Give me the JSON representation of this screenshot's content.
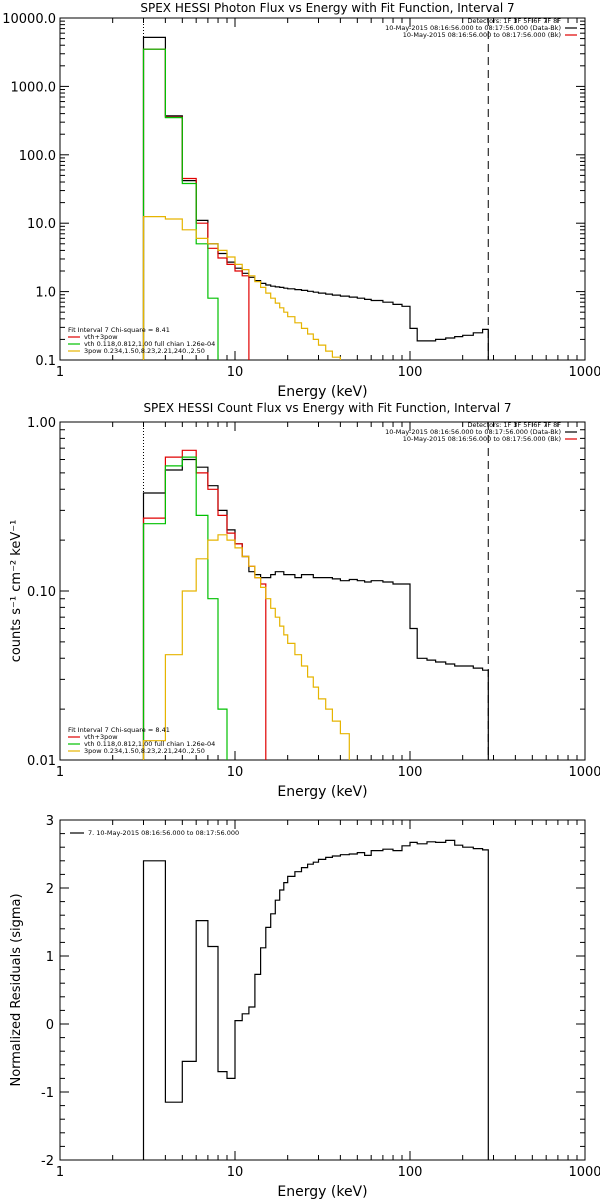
{
  "chart_data": [
    {
      "type": "line",
      "title": "SPEX HESSI Photon Flux vs Energy with Fit Function, Interval 7",
      "xlabel": "Energy (keV)",
      "ylabel": "",
      "xscale": "log",
      "yscale": "log",
      "xlim": [
        1,
        1000
      ],
      "ylim": [
        0.1,
        10000
      ],
      "xticks": [
        "1",
        "10",
        "100",
        "1000"
      ],
      "yticks": [
        "10000.0",
        "1000.0",
        "100.0",
        "10.0",
        "1.0",
        "0.1"
      ],
      "info": [
        "Detectors: 1F 3F 5F 6F 7F 8F",
        "10-May-2015 08:16:56.000 to 08:17:56.000 (Data-Bk)",
        "10-May-2015 08:16:56.000 to 08:17:56.000 (Bk)"
      ],
      "legend": {
        "header": "Fit Interval 7   Chi-square = 8.41",
        "entries": [
          "vth+3pow",
          "vth 0.118,0.812,1.00  full chian 1.26e-04",
          "3pow 0.234,1.50,8.23,2.21,240.,2.50"
        ]
      },
      "vlines": [
        {
          "x": 3,
          "style": "dotted"
        },
        {
          "x": 280,
          "style": "dashed"
        }
      ],
      "series": [
        {
          "name": "",
          "color": "#000000",
          "edges": [
            3,
            4,
            5,
            6,
            7,
            8,
            9,
            10,
            11,
            12,
            13,
            14,
            15,
            16,
            17,
            18,
            19,
            20,
            22,
            24,
            26,
            28,
            30,
            33,
            36,
            40,
            45,
            50,
            55,
            60,
            70,
            80,
            90,
            100,
            110,
            125,
            140,
            160,
            180,
            200,
            230,
            260,
            280
          ],
          "values": [
            5200,
            370,
            42,
            11,
            5,
            3.6,
            2.7,
            2.2,
            1.85,
            1.62,
            1.45,
            1.32,
            1.25,
            1.2,
            1.17,
            1.15,
            1.12,
            1.1,
            1.07,
            1.04,
            1.01,
            0.98,
            0.95,
            0.92,
            0.89,
            0.86,
            0.83,
            0.8,
            0.77,
            0.74,
            0.7,
            0.65,
            0.61,
            0.29,
            0.19,
            0.19,
            0.2,
            0.21,
            0.22,
            0.23,
            0.25,
            0.28
          ]
        },
        {
          "name": "",
          "color": "#e00000",
          "edges": [
            3,
            4,
            5,
            6,
            7,
            8,
            9,
            10,
            11,
            12
          ],
          "values": [
            3500,
            355,
            45,
            10,
            4.3,
            3.1,
            2.5,
            2.0,
            1.7
          ]
        },
        {
          "name": "",
          "color": "#00c000",
          "edges": [
            3,
            4,
            5,
            6,
            7,
            8
          ],
          "values": [
            3500,
            350,
            38,
            5,
            0.8
          ]
        },
        {
          "name": "",
          "color": "#e6b400",
          "edges": [
            3,
            4,
            5,
            6,
            7,
            8,
            9,
            10,
            11,
            12,
            13,
            14,
            15,
            16,
            17,
            18,
            19,
            20,
            22,
            24,
            26,
            28,
            30,
            33,
            36,
            40
          ],
          "values": [
            12.5,
            11.5,
            8,
            6,
            5,
            4,
            3.2,
            2.5,
            2.1,
            1.7,
            1.4,
            1.15,
            0.95,
            0.8,
            0.68,
            0.58,
            0.5,
            0.43,
            0.35,
            0.29,
            0.24,
            0.2,
            0.165,
            0.135,
            0.11
          ]
        }
      ]
    },
    {
      "type": "line",
      "title": "SPEX HESSI Count Flux vs Energy with Fit Function, Interval 7",
      "xlabel": "Energy (keV)",
      "ylabel": "counts s⁻¹ cm⁻² keV⁻¹",
      "xscale": "log",
      "yscale": "log",
      "xlim": [
        1,
        1000
      ],
      "ylim": [
        0.01,
        1
      ],
      "xticks": [
        "1",
        "10",
        "100",
        "1000"
      ],
      "yticks": [
        "1.00",
        "0.10",
        "0.01"
      ],
      "info": [
        "Detectors: 1F 3F 5F 6F 7F 8F",
        "10-May-2015 08:16:56.000 to 08:17:56.000 (Data-Bk)",
        "10-May-2015 08:16:56.000 to 08:17:56.000 (Bk)"
      ],
      "legend": {
        "header": "Fit Interval 7   Chi-square = 8.41",
        "entries": [
          "vth+3pow",
          "vth 0.118,0.812,1.00  full chian 1.26e-04",
          "3pow 0.234,1.50,8.23,2.21,240.,2.50"
        ]
      },
      "vlines": [
        {
          "x": 3,
          "style": "dotted"
        },
        {
          "x": 280,
          "style": "dashed"
        }
      ],
      "series": [
        {
          "name": "",
          "color": "#000000",
          "edges": [
            3,
            4,
            5,
            6,
            7,
            8,
            9,
            10,
            11,
            12,
            13,
            14,
            15,
            16,
            17,
            18,
            19,
            20,
            22,
            24,
            26,
            28,
            30,
            33,
            36,
            40,
            45,
            50,
            55,
            60,
            70,
            80,
            90,
            100,
            110,
            125,
            140,
            160,
            180,
            200,
            230,
            260,
            280
          ],
          "values": [
            0.38,
            0.52,
            0.6,
            0.54,
            0.42,
            0.3,
            0.23,
            0.19,
            0.16,
            0.13,
            0.125,
            0.12,
            0.12,
            0.125,
            0.13,
            0.13,
            0.125,
            0.125,
            0.12,
            0.125,
            0.125,
            0.12,
            0.12,
            0.12,
            0.118,
            0.115,
            0.117,
            0.115,
            0.113,
            0.115,
            0.113,
            0.11,
            0.11,
            0.06,
            0.04,
            0.039,
            0.038,
            0.037,
            0.036,
            0.036,
            0.035,
            0.034
          ]
        },
        {
          "name": "",
          "color": "#e00000",
          "edges": [
            3,
            4,
            5,
            6,
            7,
            8,
            9,
            10,
            11,
            12,
            13,
            14,
            15
          ],
          "values": [
            0.27,
            0.62,
            0.68,
            0.5,
            0.4,
            0.28,
            0.22,
            0.19,
            0.16,
            0.14,
            0.12,
            0.11
          ]
        },
        {
          "name": "",
          "color": "#00c000",
          "edges": [
            3,
            4,
            5,
            6,
            7,
            8,
            9
          ],
          "values": [
            0.25,
            0.55,
            0.62,
            0.28,
            0.09,
            0.02
          ]
        },
        {
          "name": "",
          "color": "#e6b400",
          "edges": [
            3,
            4,
            5,
            6,
            7,
            8,
            9,
            10,
            11,
            12,
            13,
            14,
            15,
            16,
            17,
            18,
            19,
            20,
            22,
            24,
            26,
            28,
            30,
            33,
            36,
            40,
            45
          ],
          "values": [
            0.013,
            0.042,
            0.1,
            0.155,
            0.2,
            0.215,
            0.2,
            0.18,
            0.16,
            0.14,
            0.12,
            0.105,
            0.09,
            0.079,
            0.07,
            0.062,
            0.055,
            0.049,
            0.042,
            0.036,
            0.031,
            0.027,
            0.023,
            0.02,
            0.017,
            0.0143
          ]
        }
      ]
    },
    {
      "type": "line",
      "title": "",
      "xlabel": "Energy (keV)",
      "ylabel": "Normalized Residuals (sigma)",
      "xscale": "log",
      "yscale": "linear",
      "xlim": [
        1,
        1000
      ],
      "ylim": [
        -2,
        3
      ],
      "xticks": [
        "1",
        "10",
        "100",
        "1000"
      ],
      "yticks": [
        "3",
        "2",
        "1",
        "0",
        "-1",
        "-2"
      ],
      "legend": {
        "header": "",
        "entries": [
          "7. 10-May-2015 08:16:56.000 to 08:17:56.000"
        ]
      },
      "series": [
        {
          "name": "",
          "color": "#000000",
          "edges": [
            3,
            4,
            5,
            6,
            7,
            8,
            9,
            10,
            11,
            12,
            13,
            14,
            15,
            16,
            17,
            18,
            19,
            20,
            22,
            24,
            26,
            28,
            30,
            33,
            36,
            40,
            45,
            50,
            55,
            60,
            70,
            80,
            90,
            100,
            110,
            125,
            140,
            160,
            180,
            200,
            230,
            260,
            280
          ],
          "values": [
            2.4,
            -1.15,
            -0.55,
            1.52,
            1.14,
            -0.7,
            -0.8,
            0.05,
            0.15,
            0.25,
            0.73,
            1.12,
            1.42,
            1.62,
            1.82,
            1.97,
            2.08,
            2.17,
            2.24,
            2.3,
            2.35,
            2.38,
            2.42,
            2.45,
            2.47,
            2.49,
            2.5,
            2.52,
            2.48,
            2.55,
            2.57,
            2.55,
            2.62,
            2.67,
            2.65,
            2.68,
            2.67,
            2.7,
            2.63,
            2.6,
            2.58,
            2.56
          ]
        }
      ]
    }
  ]
}
